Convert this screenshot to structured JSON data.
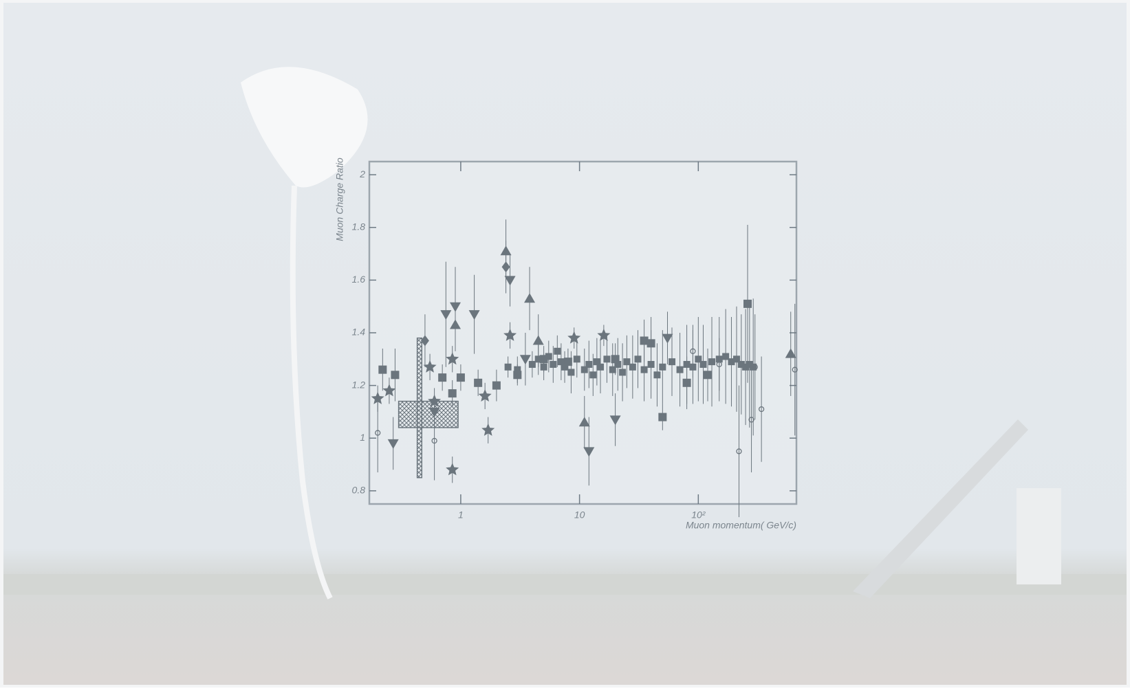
{
  "chart_data": {
    "type": "scatter",
    "log_x": true,
    "color": "#6b757d",
    "y_label": "Muon Charge Ratio",
    "x_label": "Muon momentum( GeV/c)",
    "xlim": [
      0.17,
      670
    ],
    "ylim": [
      0.75,
      2.05
    ],
    "xticks": [
      1,
      10,
      {
        "value": 100,
        "label": "10²"
      }
    ],
    "yticks": [
      {
        "value": 0.8,
        "label": "0.8"
      },
      1,
      1.2,
      1.4,
      1.6,
      1.8,
      2
    ],
    "boxes": [
      {
        "x": [
          0.3,
          0.95
        ],
        "y": [
          1.04,
          1.14
        ]
      },
      {
        "x": [
          0.43,
          0.47
        ],
        "y": [
          0.85,
          1.38
        ]
      }
    ],
    "series": [
      {
        "marker": "square",
        "x": [
          0.22,
          0.28,
          0.7,
          0.85,
          1.0,
          1.4,
          2.0,
          3.0,
          5,
          8,
          20,
          35,
          40,
          50,
          80,
          120,
          260
        ],
        "values": [
          1.26,
          1.24,
          1.23,
          1.17,
          1.23,
          1.21,
          1.2,
          1.24,
          1.3,
          1.29,
          1.3,
          1.37,
          1.36,
          1.08,
          1.21,
          1.24,
          1.51
        ],
        "errors": [
          0.08,
          0.1,
          0.05,
          0.05,
          0.05,
          0.05,
          0.06,
          0.04,
          0.05,
          0.05,
          0.06,
          0.08,
          0.1,
          0.05,
          0.1,
          0.1,
          0.3
        ]
      },
      {
        "marker": "triangle-down",
        "x": [
          0.27,
          0.6,
          0.75,
          0.9,
          1.3,
          2.6,
          3.5,
          12,
          20,
          55
        ],
        "values": [
          0.98,
          1.1,
          1.47,
          1.5,
          1.47,
          1.6,
          1.3,
          0.95,
          1.07,
          1.38
        ],
        "errors": [
          0.1,
          0.06,
          0.2,
          0.15,
          0.15,
          0.1,
          0.1,
          0.13,
          0.1,
          0.1
        ]
      },
      {
        "marker": "triangle-up",
        "x": [
          0.9,
          2.4,
          3.8,
          4.5,
          11,
          600
        ],
        "values": [
          1.43,
          1.71,
          1.53,
          1.37,
          1.06,
          1.32
        ],
        "errors": [
          0.1,
          0.12,
          0.12,
          0.1,
          0.1,
          0.16
        ]
      },
      {
        "marker": "star",
        "x": [
          0.2,
          0.25,
          0.55,
          0.6,
          0.85,
          0.85,
          1.6,
          1.7,
          2.6,
          9,
          16
        ],
        "values": [
          1.15,
          1.18,
          1.27,
          1.14,
          1.3,
          0.88,
          1.16,
          1.03,
          1.39,
          1.38,
          1.39
        ],
        "errors": [
          0.05,
          0.05,
          0.05,
          0.05,
          0.05,
          0.05,
          0.05,
          0.05,
          0.05,
          0.04,
          0.04
        ]
      },
      {
        "marker": "diamond",
        "x": [
          2.4,
          0.5
        ],
        "values": [
          1.65,
          1.37
        ],
        "errors": [
          0.1,
          0.1
        ]
      },
      {
        "marker": "circle",
        "x": [
          0.2,
          0.6,
          90,
          150,
          220,
          280,
          300,
          340,
          650
        ],
        "values": [
          1.02,
          0.99,
          1.33,
          1.28,
          0.95,
          1.07,
          1.27,
          1.11,
          1.26
        ],
        "errors": [
          0.15,
          0.15,
          0.1,
          0.1,
          0.25,
          0.2,
          0.2,
          0.2,
          0.25
        ]
      },
      {
        "marker": "small-square",
        "x": [
          2.5,
          3,
          4,
          4.5,
          5,
          5.5,
          6,
          6.5,
          7,
          7.5,
          8.5,
          9.5,
          11,
          12,
          13,
          14,
          15,
          17,
          19,
          21,
          23,
          25,
          28,
          31,
          35,
          40,
          45,
          50,
          60,
          70,
          80,
          90,
          100,
          110,
          130,
          150,
          170,
          190,
          210,
          230,
          250,
          270,
          290
        ],
        "values": [
          1.27,
          1.26,
          1.28,
          1.3,
          1.27,
          1.31,
          1.28,
          1.33,
          1.29,
          1.27,
          1.25,
          1.3,
          1.26,
          1.28,
          1.24,
          1.29,
          1.27,
          1.3,
          1.26,
          1.28,
          1.25,
          1.29,
          1.27,
          1.3,
          1.26,
          1.28,
          1.24,
          1.27,
          1.29,
          1.26,
          1.28,
          1.27,
          1.3,
          1.28,
          1.29,
          1.3,
          1.31,
          1.29,
          1.3,
          1.28,
          1.27,
          1.28,
          1.27
        ],
        "errors": [
          0.04,
          0.05,
          0.05,
          0.06,
          0.05,
          0.06,
          0.07,
          0.06,
          0.07,
          0.06,
          0.08,
          0.07,
          0.08,
          0.09,
          0.08,
          0.09,
          0.1,
          0.09,
          0.1,
          0.1,
          0.11,
          0.1,
          0.12,
          0.11,
          0.12,
          0.13,
          0.12,
          0.14,
          0.13,
          0.14,
          0.15,
          0.14,
          0.16,
          0.15,
          0.17,
          0.16,
          0.18,
          0.17,
          0.2,
          0.19,
          0.22,
          0.24,
          0.26
        ]
      }
    ]
  }
}
